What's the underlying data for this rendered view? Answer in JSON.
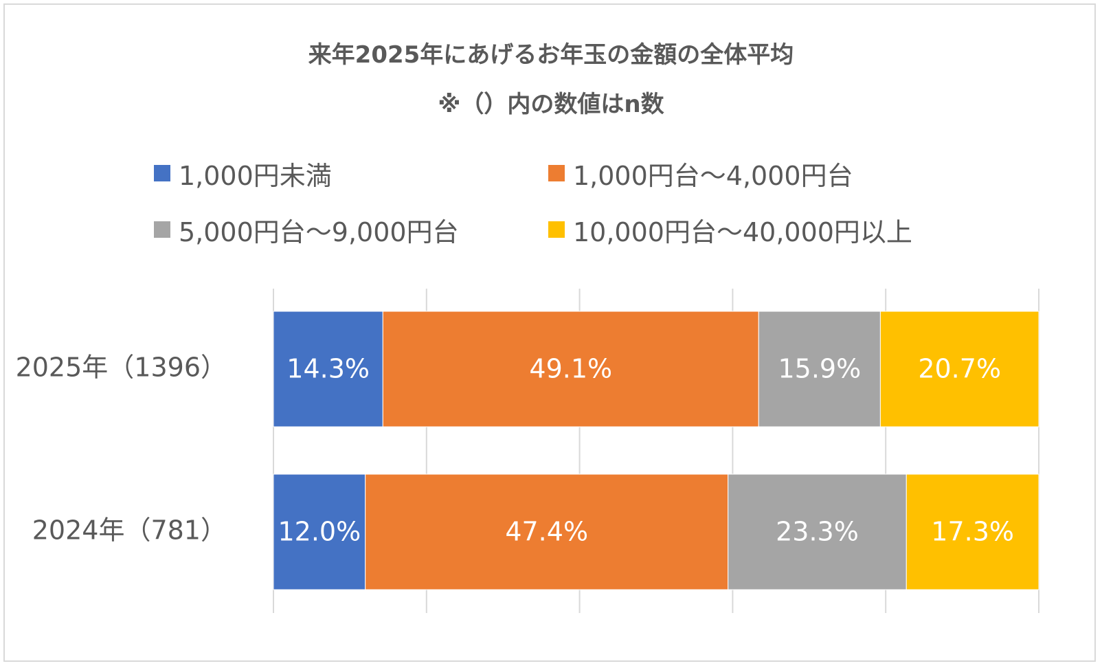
{
  "title": "来年2025年にあげるお年玉の金額の全体平均",
  "subtitle": "※（）内の数値はn数",
  "legend": [
    {
      "label": "1,000円未満",
      "color": "#4472c4"
    },
    {
      "label": "1,000円台～4,000円台",
      "color": "#ed7d31"
    },
    {
      "label": "5,000円台～9,000円台",
      "color": "#a5a5a5"
    },
    {
      "label": "10,000円台～40,000円以上",
      "color": "#ffc000"
    }
  ],
  "chart_data": {
    "type": "bar",
    "orientation": "horizontal",
    "stacked": "100%",
    "categories": [
      "2025年（1396）",
      "2024年（781）"
    ],
    "series": [
      {
        "name": "1,000円未満",
        "color": "#4472c4",
        "values": [
          14.3,
          12.0
        ],
        "labels": [
          "14.3%",
          "12.0%"
        ]
      },
      {
        "name": "1,000円台～4,000円台",
        "color": "#ed7d31",
        "values": [
          49.1,
          47.4
        ],
        "labels": [
          "49.1%",
          "47.4%"
        ]
      },
      {
        "name": "5,000円台～9,000円台",
        "color": "#a5a5a5",
        "values": [
          15.9,
          23.3
        ],
        "labels": [
          "15.9%",
          "23.3%"
        ]
      },
      {
        "name": "10,000円台～40,000円以上",
        "color": "#ffc000",
        "values": [
          20.7,
          17.3
        ],
        "labels": [
          "20.7%",
          "17.3%"
        ]
      }
    ],
    "xlim": [
      0,
      100
    ],
    "grid": true,
    "legend_position": "top"
  }
}
